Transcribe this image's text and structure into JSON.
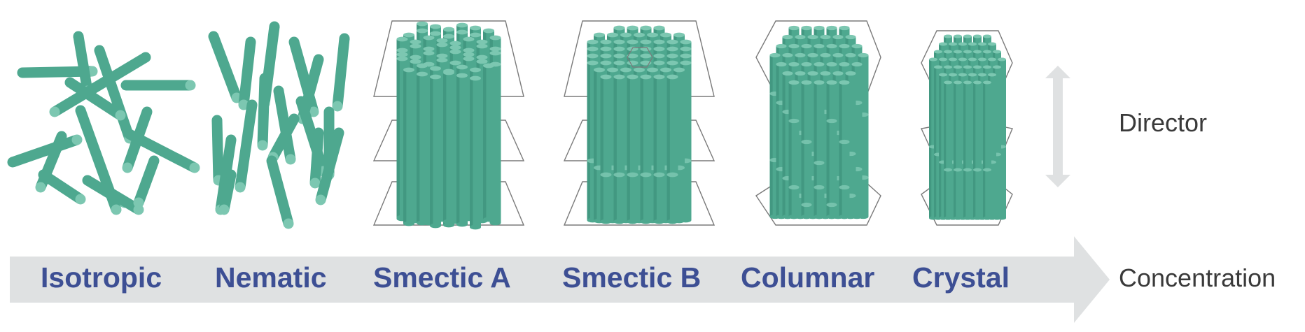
{
  "colors": {
    "rod_body": "#4ea88f",
    "rod_top": "#7cc7b1",
    "rod_edge": "#2f7a66",
    "label": "#3d4f94",
    "arrow": "#dfe1e2",
    "frame": "#7a7a7a",
    "side_text": "#3a3a3a"
  },
  "phases": [
    {
      "label": "Isotropic"
    },
    {
      "label": "Nematic"
    },
    {
      "label": "Smectic A"
    },
    {
      "label": "Smectic B"
    },
    {
      "label": "Columnar"
    },
    {
      "label": "Crystal"
    }
  ],
  "director_label": "Director",
  "concentration_label": "Concentration"
}
